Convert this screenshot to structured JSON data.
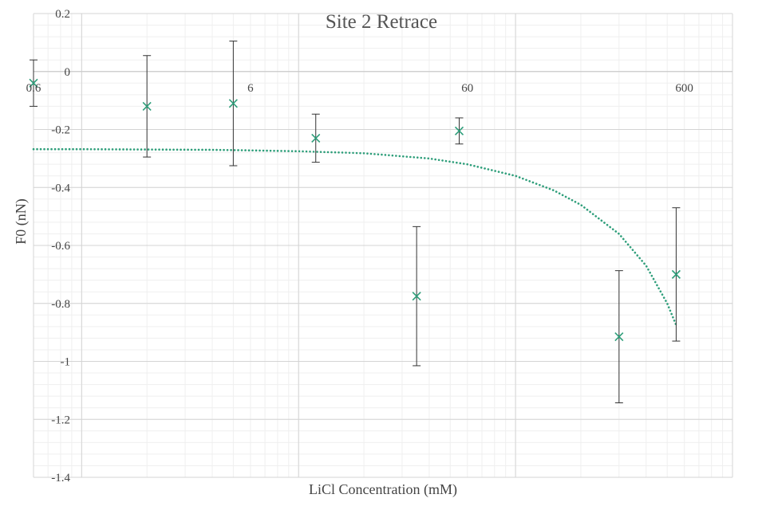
{
  "chart_data": {
    "type": "scatter",
    "title": "Site 2 Retrace",
    "xlabel": "LiCl Concentration (mM)",
    "ylabel": "F0 (nN)",
    "x_scale": "log",
    "xlim": [
      0.6,
      1000
    ],
    "ylim": [
      -1.4,
      0.2
    ],
    "x_ticks": [
      0.6,
      6,
      60,
      600
    ],
    "x_tick_labels": [
      "0.6",
      "6",
      "60",
      "600"
    ],
    "y_ticks": [
      0.2,
      0,
      -0.2,
      -0.4,
      -0.6,
      -0.8,
      -1,
      -1.2,
      -1.4
    ],
    "y_tick_labels": [
      "0.2",
      "0",
      "-0.2",
      "-0.4",
      "-0.6",
      "-0.8",
      "-1",
      "-1.2",
      "-1.4"
    ],
    "grid": true,
    "series": [
      {
        "marker": "x",
        "color": "#2e9e7a",
        "points": [
          {
            "x": 0.6,
            "y": -0.04,
            "err": 0.08
          },
          {
            "x": 2,
            "y": -0.12,
            "err": 0.175
          },
          {
            "x": 5,
            "y": -0.11,
            "err": 0.215
          },
          {
            "x": 12,
            "y": -0.23,
            "err": 0.083
          },
          {
            "x": 35,
            "y": -0.775,
            "err": 0.24
          },
          {
            "x": 55,
            "y": -0.205,
            "err": 0.045
          },
          {
            "x": 300,
            "y": -0.915,
            "err": 0.228
          },
          {
            "x": 550,
            "y": -0.7,
            "err": 0.23
          }
        ]
      }
    ],
    "trendline": {
      "style": "dotted",
      "color": "#2e9e7a",
      "x": [
        0.6,
        1,
        2,
        4,
        6,
        10,
        20,
        40,
        60,
        100,
        150,
        200,
        300,
        400,
        500,
        550
      ],
      "y": [
        -0.268,
        -0.268,
        -0.269,
        -0.27,
        -0.272,
        -0.275,
        -0.282,
        -0.3,
        -0.32,
        -0.36,
        -0.41,
        -0.46,
        -0.56,
        -0.67,
        -0.8,
        -0.875
      ]
    }
  }
}
